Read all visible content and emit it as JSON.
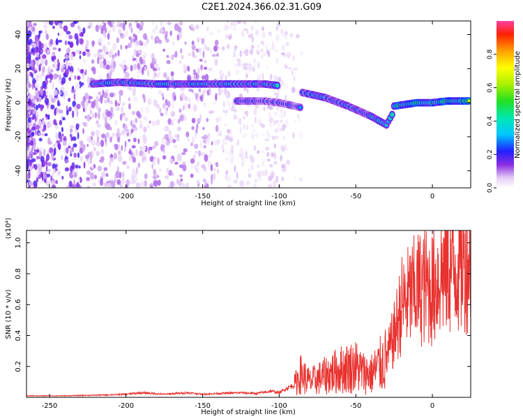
{
  "title": "C2E1.2024.366.02.31.G09",
  "colors": {
    "snr_line": "#e8322f",
    "axis": "#000000"
  },
  "chart_data": [
    {
      "type": "heatmap",
      "xlabel": "Height of straight line (km)",
      "ylabel": "Frequency (Hz)",
      "xlim": [
        -265,
        25
      ],
      "ylim": [
        -50,
        48
      ],
      "x_ticks": [
        -250,
        -200,
        -150,
        -100,
        -50,
        0
      ],
      "y_ticks": [
        -40,
        -20,
        0,
        20,
        40
      ],
      "colorbar": {
        "label": "Normalized spectral amplitude",
        "range": [
          0,
          1
        ],
        "ticks": [
          0.0,
          0.2,
          0.4,
          0.6,
          0.8
        ],
        "colormap": "rainbow"
      },
      "ridges": [
        {
          "x": [
            -222,
            -205,
            -180,
            -150,
            -130,
            -110,
            -100
          ],
          "freq": [
            11,
            12,
            11,
            11,
            11,
            11,
            10
          ],
          "amplitude": 0.55
        },
        {
          "x": [
            -128,
            -110,
            -100,
            -90,
            -85
          ],
          "freq": [
            1,
            1,
            0,
            -2,
            -3
          ],
          "amplitude": 0.4
        },
        {
          "x": [
            -85,
            -70,
            -55,
            -40,
            -30,
            -25
          ],
          "freq": [
            6,
            3,
            -2,
            -8,
            -13,
            -5
          ],
          "amplitude": 0.5
        },
        {
          "x": [
            -25,
            -10,
            0,
            10,
            25
          ],
          "freq": [
            -2,
            0,
            0,
            1,
            1
          ],
          "amplitude": 0.75
        }
      ]
    },
    {
      "type": "line",
      "xlabel": "Height of straight line (km)",
      "ylabel": "SNR (10 * v/v)",
      "y_multiplier": "(x10⁴)",
      "xlim": [
        -265,
        25
      ],
      "ylim": [
        0,
        1.08
      ],
      "x_ticks": [
        -250,
        -200,
        -150,
        -100,
        -50,
        0
      ],
      "y_ticks": [
        0.2,
        0.4,
        0.6,
        0.8,
        1.0
      ],
      "series": [
        {
          "x": [
            -265,
            -240,
            -215,
            -200,
            -190,
            -175,
            -160,
            -150,
            -140,
            -125,
            -115,
            -105,
            -100,
            -95,
            -90,
            -86,
            -80,
            -70,
            -60,
            -50,
            -45,
            -40,
            -35,
            -30,
            -25,
            -20,
            -15,
            -10,
            -5,
            0,
            5,
            10,
            15,
            20,
            25
          ],
          "y": [
            0.01,
            0.01,
            0.015,
            0.02,
            0.03,
            0.02,
            0.03,
            0.02,
            0.025,
            0.03,
            0.025,
            0.04,
            0.03,
            0.06,
            0.08,
            0.15,
            0.1,
            0.14,
            0.18,
            0.2,
            0.16,
            0.15,
            0.2,
            0.25,
            0.4,
            0.6,
            0.65,
            0.7,
            0.72,
            0.7,
            0.8,
            0.85,
            0.85,
            0.88,
            0.92
          ]
        }
      ]
    }
  ]
}
